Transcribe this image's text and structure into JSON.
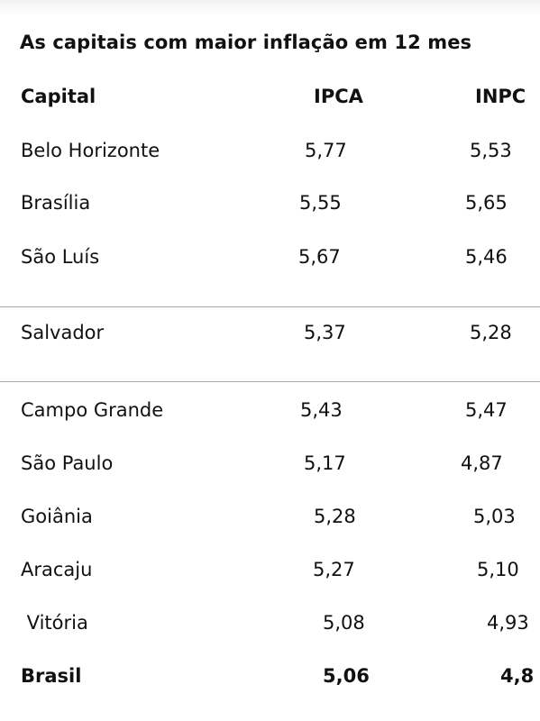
{
  "title": "As capitais com maior inflação em 12 mes",
  "header": {
    "capital": "Capital",
    "ipca": "IPCA",
    "inpc": "INPC"
  },
  "rows": [
    {
      "capital": "Belo Horizonte",
      "ipca": "5,77",
      "inpc": "5,53"
    },
    {
      "capital": "Brasília",
      "ipca": "5,55",
      "inpc": "5,65"
    },
    {
      "capital": "São Luís",
      "ipca": "5,67",
      "inpc": "5,46"
    },
    {
      "capital": "Salvador",
      "ipca": "5,37",
      "inpc": "5,28"
    },
    {
      "capital": "Campo Grande",
      "ipca": "5,43",
      "inpc": "5,47"
    },
    {
      "capital": "São Paulo",
      "ipca": "5,17",
      "inpc": "4,87"
    },
    {
      "capital": "Goiânia",
      "ipca": "5,28",
      "inpc": "5,03"
    },
    {
      "capital": "Aracaju",
      "ipca": "5,27",
      "inpc": "5,10"
    },
    {
      "capital": " Vitória",
      "ipca": "5,08",
      "inpc": "4,93"
    }
  ],
  "total": {
    "capital": "Brasil",
    "ipca": "5,06",
    "inpc": "4,8"
  }
}
